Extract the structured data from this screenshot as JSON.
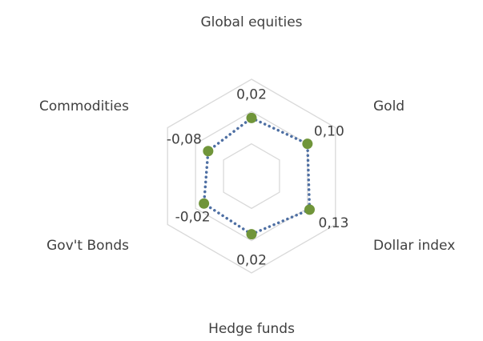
{
  "chart_data": {
    "type": "radar",
    "categories": [
      "Global equities",
      "Gold",
      "Dollar index",
      "Hedge funds",
      "Gov't Bonds",
      "Commodities"
    ],
    "values": [
      0.02,
      0.1,
      0.13,
      0.02,
      -0.02,
      -0.08
    ],
    "value_labels": [
      "0,02",
      "0,10",
      "0,13",
      "0,02",
      "-0,02",
      "-0,08"
    ],
    "color": "#4e6fa3",
    "marker_color": "#70953a",
    "ylim": [
      -0.7,
      0.5
    ],
    "yticks": [
      -0.3,
      0.1,
      0.5
    ],
    "grid": true
  }
}
